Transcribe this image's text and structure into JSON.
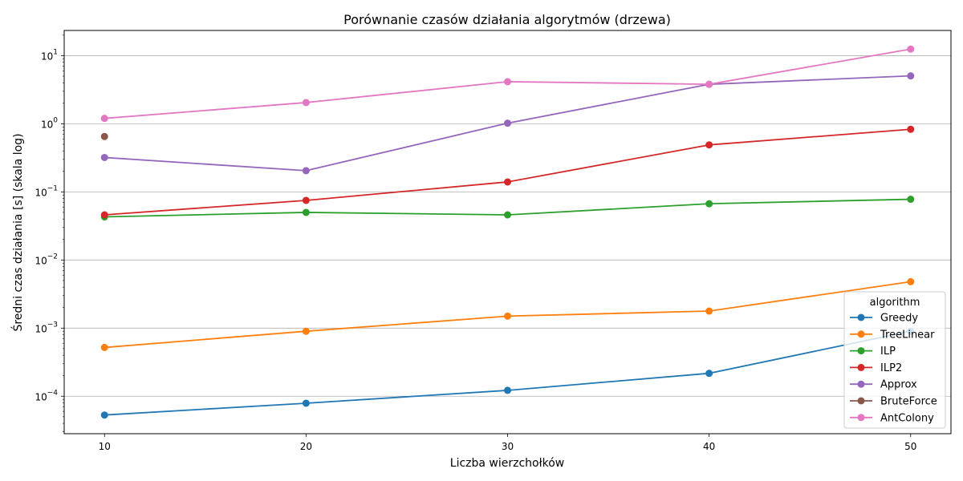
{
  "chart_data": {
    "type": "line",
    "title": "Porównanie czasów działania algorytmów (drzewa)",
    "xlabel": "Liczba wierzchołków",
    "ylabel": "Średni czas działania [s] (skala log)",
    "yscale": "log",
    "xlim": [
      8,
      52
    ],
    "ylim_exp": [
      -4.55,
      1.37
    ],
    "grid": "y-major",
    "x_ticks": [
      10,
      20,
      30,
      40,
      50
    ],
    "x_tick_labels": [
      "10",
      "20",
      "30",
      "40",
      "50"
    ],
    "y_ticks": [
      -4,
      -3,
      -2,
      -1,
      0,
      1
    ],
    "y_tick_base": "10",
    "legend_title": "algorithm",
    "legend_position": "lower-right",
    "series": [
      {
        "name": "Greedy",
        "color": "#1f77b4",
        "x": [
          10,
          20,
          30,
          40,
          50
        ],
        "values": [
          5.3e-05,
          7.9e-05,
          0.000122,
          0.000217,
          0.0009
        ]
      },
      {
        "name": "TreeLinear",
        "color": "#ff7f0e",
        "x": [
          10,
          20,
          30,
          40,
          50
        ],
        "values": [
          0.00052,
          0.0009,
          0.0015,
          0.00178,
          0.0048
        ]
      },
      {
        "name": "ILP",
        "color": "#2ca02c",
        "x": [
          10,
          20,
          30,
          40,
          50
        ],
        "values": [
          0.043,
          0.05,
          0.046,
          0.067,
          0.078
        ]
      },
      {
        "name": "ILP2",
        "color": "#d62728",
        "x": [
          10,
          20,
          30,
          40,
          50
        ],
        "values": [
          0.046,
          0.075,
          0.14,
          0.49,
          0.83
        ]
      },
      {
        "name": "Approx",
        "color": "#9467bd",
        "x": [
          10,
          20,
          30,
          40,
          50
        ],
        "values": [
          0.32,
          0.205,
          1.02,
          3.8,
          5.05
        ]
      },
      {
        "name": "BruteForce",
        "color": "#8c564b",
        "x": [
          10
        ],
        "values": [
          0.65
        ]
      },
      {
        "name": "AntColony",
        "color": "#e377c2",
        "x": [
          10,
          20,
          30,
          40,
          50
        ],
        "values": [
          1.2,
          2.05,
          4.15,
          3.8,
          12.5
        ]
      }
    ]
  }
}
